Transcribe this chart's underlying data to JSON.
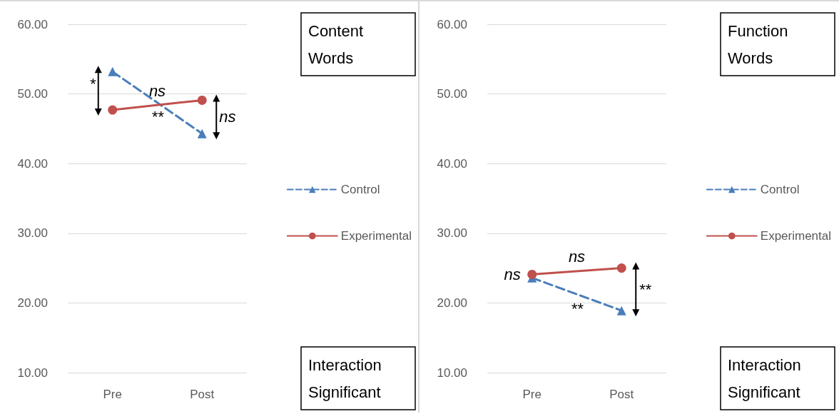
{
  "chart_data": [
    {
      "type": "line",
      "categories": [
        "Pre",
        "Post"
      ],
      "series": [
        {
          "name": "Control",
          "color": "#4a7ebb",
          "values": [
            53.2,
            44.3
          ],
          "marker": "triangle",
          "line_style": "dashed"
        },
        {
          "name": "Experimental",
          "color": "#c0504d",
          "values": [
            47.7,
            49.1
          ],
          "marker": "circle",
          "line_style": "solid"
        }
      ],
      "ylim": [
        10,
        60
      ],
      "yticks": [
        {
          "value": 10,
          "label": "10.00"
        },
        {
          "value": 20,
          "label": "20.00"
        },
        {
          "value": 30,
          "label": "30.00"
        },
        {
          "value": 40,
          "label": "40.00"
        },
        {
          "value": 50,
          "label": "50.00"
        },
        {
          "value": 60,
          "label": "60.00"
        }
      ],
      "grid": "y",
      "legend": "right",
      "annotations": [
        "Content Words",
        "*",
        "ns",
        "ns",
        "**",
        "Interaction Significant"
      ]
    },
    {
      "type": "line",
      "categories": [
        "Pre",
        "Post"
      ],
      "series": [
        {
          "name": "Control",
          "color": "#4a7ebb",
          "values": [
            23.6,
            18.9
          ],
          "marker": "triangle",
          "line_style": "dashed"
        },
        {
          "name": "Experimental",
          "color": "#c0504d",
          "values": [
            24.1,
            25.0
          ],
          "marker": "circle",
          "line_style": "solid"
        }
      ],
      "ylim": [
        10,
        60
      ],
      "yticks": [
        {
          "value": 10,
          "label": "10.00"
        },
        {
          "value": 20,
          "label": "20.00"
        },
        {
          "value": 30,
          "label": "30.00"
        },
        {
          "value": 40,
          "label": "40.00"
        },
        {
          "value": 50,
          "label": "50.00"
        },
        {
          "value": 60,
          "label": "60.00"
        }
      ],
      "grid": "y",
      "legend": "right",
      "annotations": [
        "Function Words",
        "ns",
        "ns",
        "**",
        "**",
        "Interaction Significant"
      ]
    }
  ]
}
